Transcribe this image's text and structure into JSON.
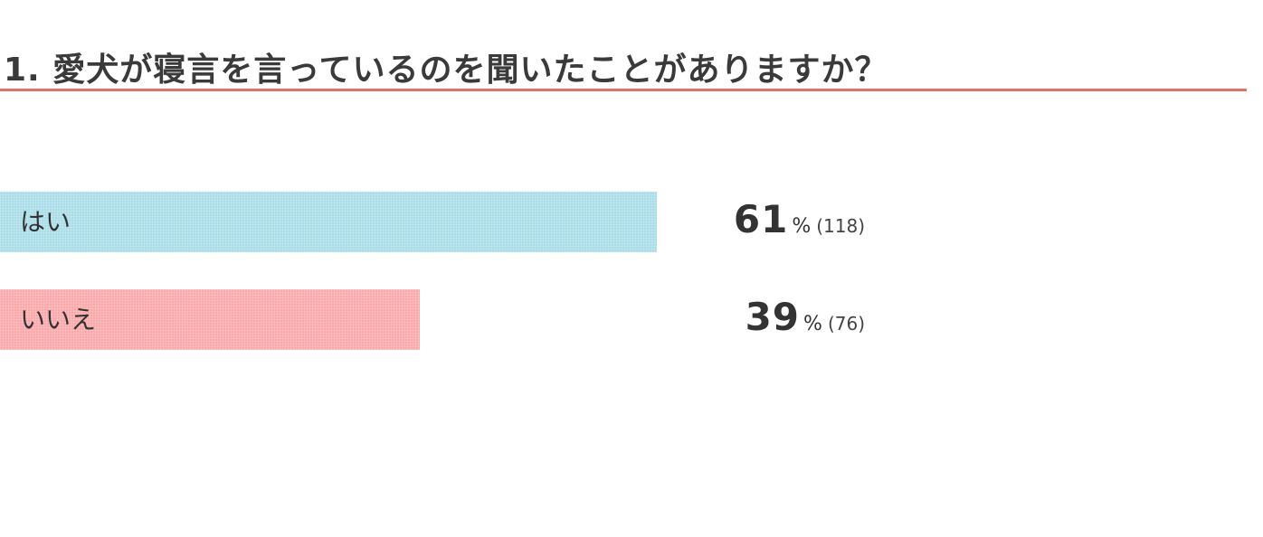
{
  "chart_data": {
    "type": "bar",
    "orientation": "horizontal",
    "title": "1. 愛犬が寝言を言っているのを聞いたことがありますか？",
    "categories": [
      "はい",
      "いいえ"
    ],
    "values": [
      61,
      39
    ],
    "counts": [
      118,
      76
    ],
    "percent_sign": "%",
    "colors": [
      "#a9dde8",
      "#fca7a8"
    ],
    "grid": false
  },
  "accent_color": "#e96b6b"
}
